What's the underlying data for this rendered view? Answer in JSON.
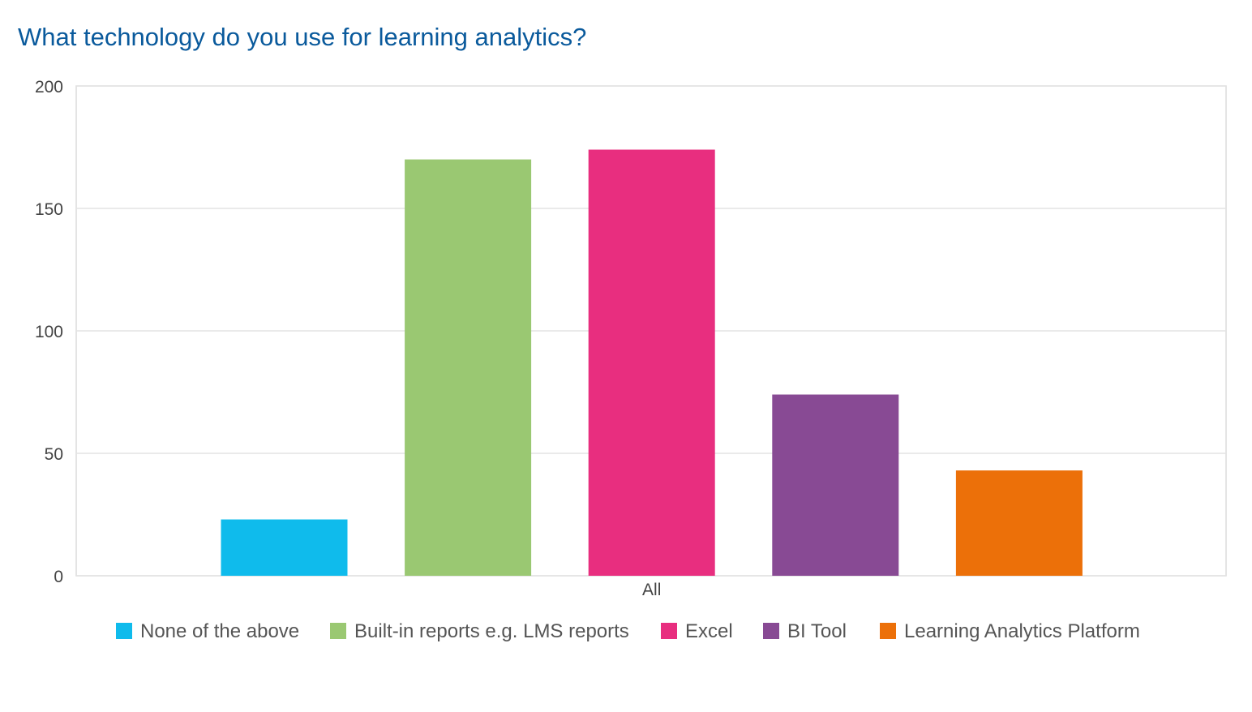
{
  "chart_data": {
    "type": "bar",
    "title": "What technology do you use for learning analytics?",
    "categories": [
      "All"
    ],
    "series": [
      {
        "name": "None of the above",
        "values": [
          23
        ],
        "color": "#0fbbec"
      },
      {
        "name": "Built-in reports e.g. LMS reports",
        "values": [
          170
        ],
        "color": "#9ac872"
      },
      {
        "name": "Excel",
        "values": [
          174
        ],
        "color": "#e82e7f"
      },
      {
        "name": "BI Tool",
        "values": [
          74
        ],
        "color": "#884a94"
      },
      {
        "name": "Learning Analytics Platform",
        "values": [
          43
        ],
        "color": "#ec7009"
      }
    ],
    "ylim": [
      0,
      200
    ],
    "yticks": [
      0,
      50,
      100,
      150,
      200
    ],
    "grid": true,
    "legend_position": "bottom"
  }
}
